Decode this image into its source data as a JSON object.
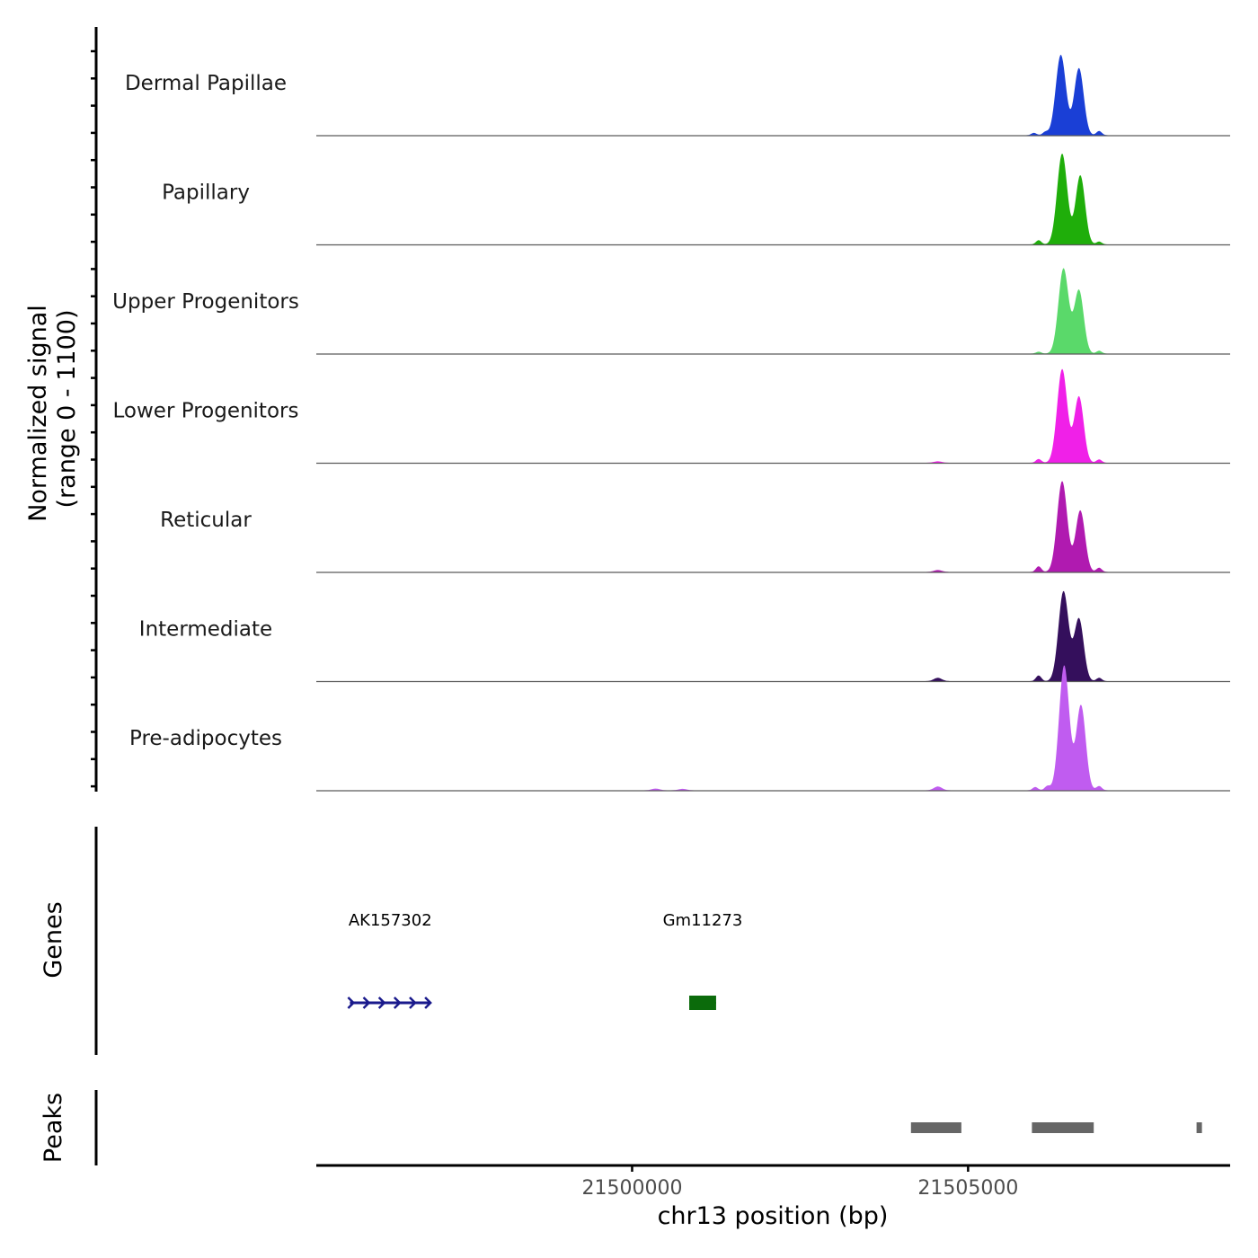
{
  "chart_data": {
    "type": "area",
    "title": "",
    "coverage_ylabel_line1": "Normalized signal",
    "coverage_ylabel_line2": "(range 0 - 1100)",
    "ylim": [
      0,
      1100
    ],
    "xlabel": "chr13 position (bp)",
    "xlim": [
      21495300,
      21508900
    ],
    "x_ticks": [
      21500000,
      21505000
    ],
    "x_tick_labels": [
      "21500000",
      "21505000"
    ],
    "series": [
      {
        "name": "Dermal Papillae",
        "color": "#1a3fd6",
        "peaks": [
          {
            "center": 21506380,
            "sigma": 75,
            "height": 850
          },
          {
            "center": 21506650,
            "sigma": 70,
            "height": 710
          },
          {
            "center": 21506950,
            "sigma": 40,
            "height": 45
          },
          {
            "center": 21505980,
            "sigma": 40,
            "height": 25
          },
          {
            "center": 21506150,
            "sigma": 40,
            "height": 35
          }
        ]
      },
      {
        "name": "Papillary",
        "color": "#1fae0a",
        "peaks": [
          {
            "center": 21506400,
            "sigma": 75,
            "height": 960
          },
          {
            "center": 21506670,
            "sigma": 70,
            "height": 730
          },
          {
            "center": 21506950,
            "sigma": 40,
            "height": 30
          },
          {
            "center": 21506050,
            "sigma": 40,
            "height": 45
          }
        ]
      },
      {
        "name": "Upper Progenitors",
        "color": "#5ad96a",
        "peaks": [
          {
            "center": 21506420,
            "sigma": 75,
            "height": 900
          },
          {
            "center": 21506650,
            "sigma": 70,
            "height": 670
          },
          {
            "center": 21506950,
            "sigma": 40,
            "height": 30
          },
          {
            "center": 21506050,
            "sigma": 40,
            "height": 20
          }
        ]
      },
      {
        "name": "Lower Progenitors",
        "color": "#f020e8",
        "peaks": [
          {
            "center": 21506400,
            "sigma": 75,
            "height": 990
          },
          {
            "center": 21506650,
            "sigma": 70,
            "height": 700
          },
          {
            "center": 21506950,
            "sigma": 40,
            "height": 35
          },
          {
            "center": 21506050,
            "sigma": 40,
            "height": 40
          },
          {
            "center": 21504550,
            "sigma": 60,
            "height": 15
          }
        ]
      },
      {
        "name": "Reticular",
        "color": "#b01ab0",
        "peaks": [
          {
            "center": 21506400,
            "sigma": 75,
            "height": 960
          },
          {
            "center": 21506670,
            "sigma": 70,
            "height": 650
          },
          {
            "center": 21506950,
            "sigma": 40,
            "height": 45
          },
          {
            "center": 21506050,
            "sigma": 40,
            "height": 60
          },
          {
            "center": 21504550,
            "sigma": 60,
            "height": 20
          }
        ]
      },
      {
        "name": "Intermediate",
        "color": "#340f5c",
        "peaks": [
          {
            "center": 21506420,
            "sigma": 75,
            "height": 950
          },
          {
            "center": 21506650,
            "sigma": 70,
            "height": 660
          },
          {
            "center": 21506950,
            "sigma": 40,
            "height": 35
          },
          {
            "center": 21506050,
            "sigma": 40,
            "height": 60
          },
          {
            "center": 21504550,
            "sigma": 60,
            "height": 35
          }
        ]
      },
      {
        "name": "Pre-adipocytes",
        "color": "#c05cf0",
        "peaks": [
          {
            "center": 21506430,
            "sigma": 75,
            "height": 1320
          },
          {
            "center": 21506680,
            "sigma": 70,
            "height": 900
          },
          {
            "center": 21506950,
            "sigma": 40,
            "height": 45
          },
          {
            "center": 21506000,
            "sigma": 40,
            "height": 35
          },
          {
            "center": 21506180,
            "sigma": 40,
            "height": 45
          },
          {
            "center": 21504550,
            "sigma": 60,
            "height": 40
          },
          {
            "center": 21500350,
            "sigma": 60,
            "height": 18
          },
          {
            "center": 21500750,
            "sigma": 60,
            "height": 15
          }
        ]
      }
    ],
    "genes_label": "Genes",
    "genes": [
      {
        "name": "AK157302",
        "start": 21495800,
        "end": 21497000,
        "strand": "+",
        "color": "#1a1a8c",
        "kind": "arrow-line"
      },
      {
        "name": "Gm11273",
        "start": 21500850,
        "end": 21501250,
        "strand": "",
        "color": "#0b6b0b",
        "kind": "exon-block"
      }
    ],
    "peaks_label": "Peaks",
    "peaks_color": "#666666",
    "peak_regions": [
      {
        "start": 21504150,
        "end": 21504900
      },
      {
        "start": 21505950,
        "end": 21506870
      },
      {
        "start": 21508400,
        "end": 21508480
      }
    ]
  }
}
